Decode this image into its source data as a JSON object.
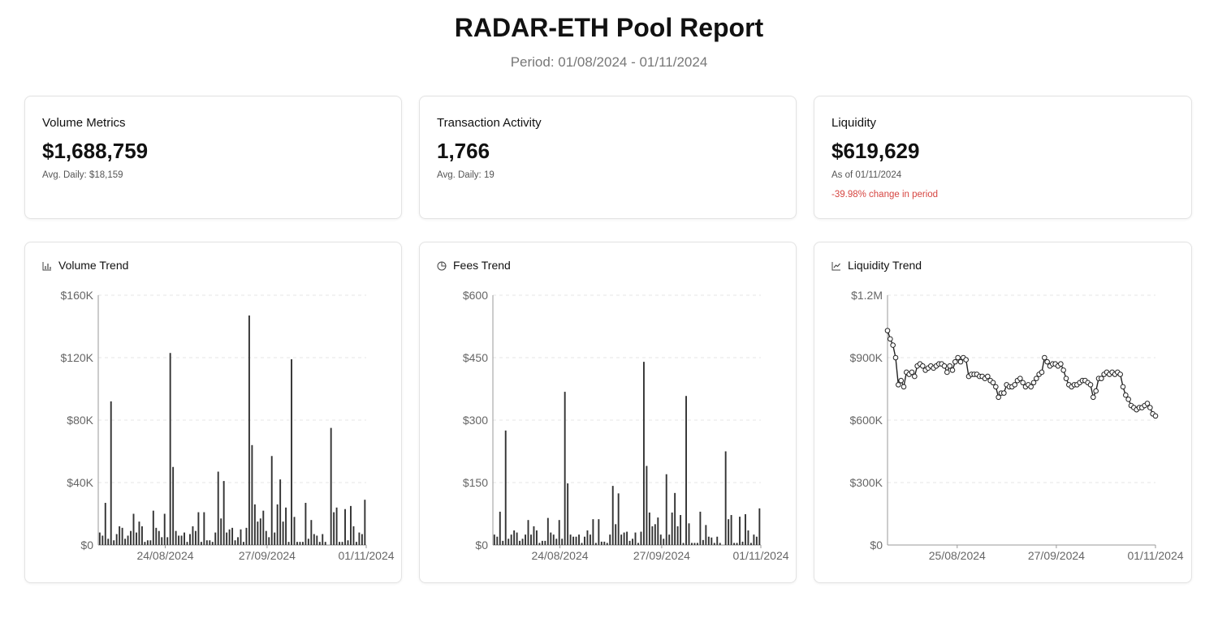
{
  "header": {
    "title": "RADAR-ETH Pool Report",
    "subtitle": "Period: 01/08/2024 - 01/11/2024"
  },
  "stats": {
    "volume": {
      "label": "Volume Metrics",
      "value": "$1,688,759",
      "sub": "Avg. Daily: $18,159"
    },
    "transactions": {
      "label": "Transaction Activity",
      "value": "1,766",
      "sub": "Avg. Daily: 19"
    },
    "liquidity": {
      "label": "Liquidity",
      "value": "$619,629",
      "sub": "As of 01/11/2024",
      "change": "-39.98% change in period",
      "change_color": "#d64541"
    }
  },
  "icons": {
    "volume": "bar-chart-icon",
    "fees": "pie-chart-icon",
    "liquidity": "line-chart-icon"
  },
  "colors": {
    "mark": "#333333",
    "grid": "#e6e6e6",
    "axis": "#999999",
    "tick_text": "#666666",
    "negative": "#d64541"
  },
  "chart_data": [
    {
      "id": "volume",
      "type": "bar",
      "title": "Volume Trend",
      "x_start": "2024-08-01",
      "x_end": "2024-11-01",
      "x_ticks": [
        "24/08/2024",
        "27/09/2024",
        "01/11/2024"
      ],
      "y_ticks": [
        "$0",
        "$40K",
        "$80K",
        "$120K",
        "$160K"
      ],
      "ylim": [
        0,
        160000
      ],
      "grid": true,
      "values": [
        8000,
        6000,
        27000,
        4000,
        92000,
        3000,
        7000,
        12000,
        11000,
        4000,
        6000,
        9000,
        20000,
        8000,
        15000,
        12000,
        2000,
        3000,
        3000,
        22000,
        11000,
        9000,
        5000,
        20000,
        5000,
        123000,
        50000,
        9000,
        6000,
        6000,
        8000,
        2000,
        7000,
        12000,
        9000,
        21000,
        2000,
        21000,
        3000,
        3000,
        2000,
        8000,
        47000,
        17000,
        41000,
        8000,
        10000,
        11000,
        3000,
        5000,
        10000,
        2000,
        11000,
        147000,
        64000,
        26000,
        15000,
        17000,
        22000,
        9000,
        5000,
        57000,
        8000,
        26000,
        42000,
        15000,
        24000,
        2000,
        119000,
        18000,
        2000,
        2000,
        2000,
        27000,
        4000,
        16000,
        7000,
        6000,
        2000,
        7000,
        2000,
        0,
        75000,
        21000,
        24000,
        2000,
        2000,
        23000,
        3000,
        25000,
        12000,
        2000,
        8000,
        7000,
        29000
      ]
    },
    {
      "id": "fees",
      "type": "bar",
      "title": "Fees Trend",
      "x_start": "2024-08-01",
      "x_end": "2024-11-01",
      "x_ticks": [
        "24/08/2024",
        "27/09/2024",
        "01/11/2024"
      ],
      "y_ticks": [
        "$0",
        "$150",
        "$300",
        "$450",
        "$600"
      ],
      "ylim": [
        0,
        600
      ],
      "grid": true,
      "values": [
        25,
        20,
        80,
        10,
        275,
        15,
        25,
        35,
        30,
        10,
        15,
        25,
        60,
        25,
        45,
        35,
        5,
        10,
        10,
        65,
        30,
        25,
        15,
        60,
        15,
        368,
        148,
        25,
        20,
        20,
        25,
        5,
        20,
        35,
        25,
        62,
        5,
        62,
        8,
        8,
        5,
        25,
        142,
        50,
        124,
        25,
        30,
        32,
        10,
        15,
        30,
        5,
        32,
        440,
        190,
        78,
        45,
        50,
        66,
        25,
        15,
        170,
        25,
        78,
        125,
        45,
        72,
        5,
        358,
        52,
        5,
        5,
        5,
        80,
        12,
        48,
        20,
        18,
        5,
        20,
        5,
        0,
        225,
        62,
        72,
        5,
        5,
        68,
        8,
        74,
        35,
        5,
        25,
        20,
        88
      ]
    },
    {
      "id": "liquidity",
      "type": "line",
      "title": "Liquidity Trend",
      "x_start": "2024-08-01",
      "x_end": "2024-11-01",
      "x_ticks": [
        "25/08/2024",
        "27/09/2024",
        "01/11/2024"
      ],
      "y_ticks": [
        "$0",
        "$300K",
        "$600K",
        "$900K",
        "$1.2M"
      ],
      "ylim": [
        0,
        1200000
      ],
      "grid": true,
      "markers": "circle",
      "values": [
        1030000,
        990000,
        960000,
        900000,
        770000,
        790000,
        760000,
        830000,
        820000,
        830000,
        810000,
        860000,
        870000,
        860000,
        840000,
        850000,
        860000,
        850000,
        860000,
        870000,
        870000,
        860000,
        830000,
        860000,
        840000,
        880000,
        900000,
        880000,
        900000,
        890000,
        810000,
        820000,
        820000,
        820000,
        810000,
        810000,
        800000,
        810000,
        790000,
        780000,
        760000,
        710000,
        730000,
        730000,
        770000,
        760000,
        760000,
        770000,
        790000,
        800000,
        780000,
        760000,
        770000,
        760000,
        780000,
        800000,
        820000,
        830000,
        900000,
        880000,
        860000,
        870000,
        870000,
        860000,
        870000,
        840000,
        800000,
        770000,
        760000,
        770000,
        770000,
        780000,
        790000,
        790000,
        780000,
        770000,
        710000,
        740000,
        800000,
        800000,
        820000,
        830000,
        820000,
        830000,
        820000,
        830000,
        820000,
        760000,
        720000,
        700000,
        670000,
        660000,
        650000,
        660000,
        660000,
        670000,
        680000,
        660000,
        630000,
        620000
      ]
    }
  ]
}
